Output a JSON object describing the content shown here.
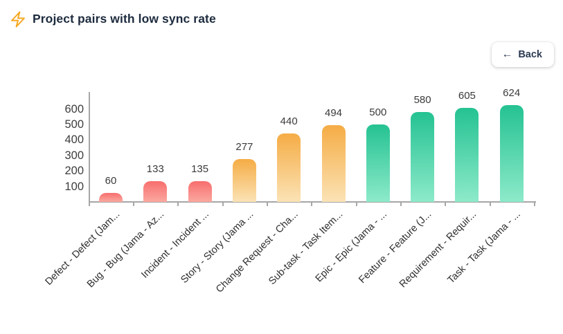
{
  "page": {
    "background": "#ffffff"
  },
  "header": {
    "title": "Project pairs with low sync rate",
    "icon": {
      "name": "lightning-bolt-icon",
      "color": "#f6a821"
    }
  },
  "toolbar": {
    "back_button": {
      "label": "Back",
      "icon": {
        "name": "arrow-left-icon",
        "glyph": "←"
      }
    }
  },
  "chart_data": {
    "type": "bar",
    "title": "Project pairs with low sync rate",
    "categories": [
      "Defect - Defect (Jam...",
      "Bug - Bug (Jama - Az...",
      "Incident - Incident ...",
      "Story - Story (Jama ...",
      "Change Request - Cha...",
      "Sub-task - Task Item...",
      "Epic - Epic (Jama - ...",
      "Feature - Feature (J...",
      "Requirement - Requir...",
      "Task - Task (Jama - ..."
    ],
    "values": [
      60,
      133,
      135,
      277,
      440,
      494,
      500,
      580,
      605,
      624
    ],
    "y_ticks": [
      100,
      200,
      300,
      400,
      500,
      600
    ],
    "ylim": [
      0,
      650
    ],
    "xlabel": "",
    "ylabel": "",
    "grid": false,
    "legend": false,
    "value_labels_shown": true,
    "x_label_rotation_deg": 45,
    "bar_color_groups": [
      "red",
      "red",
      "red",
      "amber",
      "amber",
      "amber",
      "green",
      "green",
      "green",
      "green"
    ],
    "palette": {
      "red": {
        "top": "#f76e6e",
        "bottom": "#fba9a0"
      },
      "amber": {
        "top": "#f5ac45",
        "bottom": "#fbe3b6"
      },
      "green": {
        "top": "#25c292",
        "bottom": "#8deac9"
      }
    },
    "axis_color": "#a6a6a6",
    "tick_label_color": "#3d3d3d",
    "value_label_color": "#3a3a3a"
  }
}
